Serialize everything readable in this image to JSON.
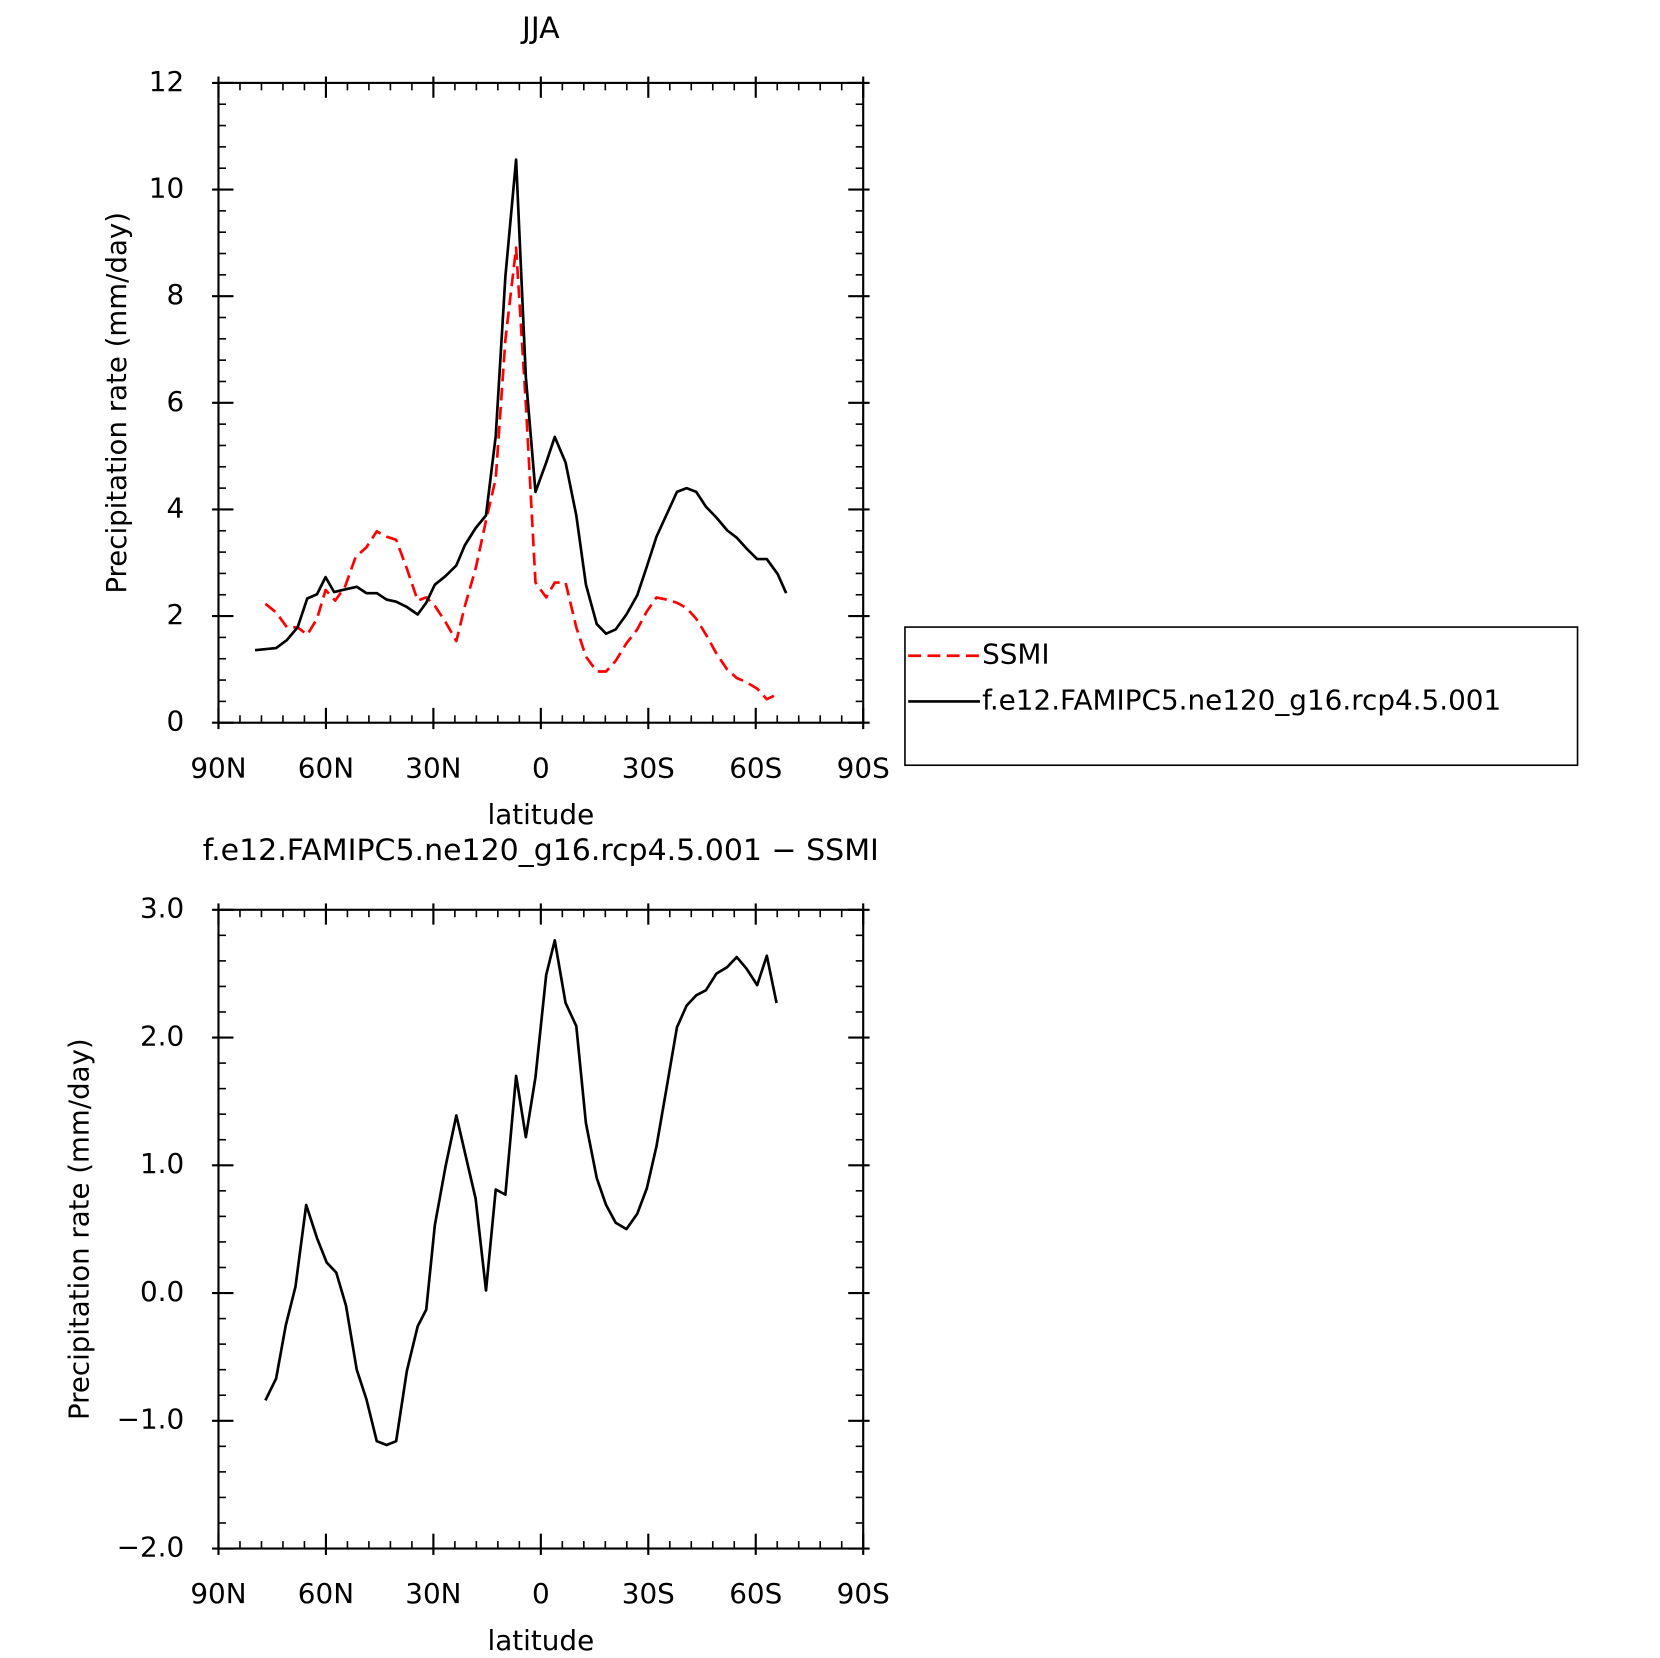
{
  "chart_data": [
    {
      "type": "line",
      "title": "JJA",
      "xlabel": "latitude",
      "ylabel": "Precipitation rate (mm/day)",
      "xlim": [
        90,
        -90
      ],
      "xticks": [
        {
          "value": 90,
          "label": "90N"
        },
        {
          "value": 60,
          "label": "60N"
        },
        {
          "value": 30,
          "label": "30N"
        },
        0,
        {
          "value": -30,
          "label": "30S"
        },
        {
          "value": -60,
          "label": "60S"
        },
        {
          "value": -90,
          "label": "90S"
        }
      ],
      "ylim": [
        0,
        12
      ],
      "yticks": [
        0,
        2,
        4,
        6,
        8,
        10,
        12
      ],
      "legend": "right",
      "series": [
        {
          "name": "SSMI",
          "color": "#ff0000",
          "linestyle": "dashed",
          "x": [
            76.9,
            73.9,
            70.9,
            67.9,
            65.2,
            62.5,
            60.1,
            57.4,
            54.7,
            51.7,
            48.7,
            45.8,
            43.1,
            40.4,
            37.4,
            34.4,
            32.0,
            29.6,
            26.6,
            23.6,
            21.2,
            18.2,
            15.3,
            12.6,
            9.9,
            6.9,
            4.2,
            1.5,
            -1.5,
            -3.9,
            -6.9,
            -9.9,
            -12.6,
            -15.6,
            -18.2,
            -20.9,
            -23.9,
            -26.9,
            -29.6,
            -32.3,
            -35.0,
            -38.0,
            -40.7,
            -43.4,
            -46.1,
            -49.0,
            -52.0,
            -54.7,
            -57.4,
            -60.4,
            -63.1,
            -66.1
          ],
          "values": [
            2.23,
            2.07,
            1.79,
            1.79,
            1.65,
            1.95,
            2.49,
            2.29,
            2.55,
            3.11,
            3.29,
            3.59,
            3.49,
            3.43,
            2.89,
            2.29,
            2.35,
            2.19,
            1.89,
            1.53,
            2.19,
            2.89,
            3.79,
            4.58,
            7.18,
            8.91,
            5.98,
            2.63,
            2.35,
            2.63,
            2.63,
            1.79,
            1.24,
            0.96,
            0.96,
            1.16,
            1.49,
            1.75,
            2.09,
            2.35,
            2.31,
            2.25,
            2.15,
            1.95,
            1.65,
            1.3,
            1.0,
            0.84,
            0.76,
            0.64,
            0.44,
            0.54
          ]
        },
        {
          "name": "f.e12.FAMIPC5.ne120_g16.rcp4.5.001",
          "color": "#000000",
          "linestyle": "solid",
          "x": [
            79.8,
            73.9,
            70.9,
            67.9,
            65.2,
            62.5,
            60.1,
            57.7,
            55.3,
            51.4,
            48.7,
            45.8,
            43.1,
            40.4,
            37.4,
            34.4,
            32.0,
            29.6,
            26.6,
            23.6,
            21.2,
            18.2,
            15.3,
            12.6,
            9.9,
            6.9,
            4.2,
            1.5,
            -1.5,
            -3.9,
            -6.9,
            -9.9,
            -12.6,
            -15.6,
            -18.2,
            -20.9,
            -23.9,
            -26.9,
            -29.6,
            -32.3,
            -35.0,
            -38.0,
            -40.7,
            -43.4,
            -46.1,
            -49.0,
            -52.0,
            -54.7,
            -57.4,
            -60.4,
            -63.1,
            -66.1,
            -68.5
          ],
          "values": [
            1.36,
            1.4,
            1.55,
            1.79,
            2.33,
            2.41,
            2.73,
            2.45,
            2.49,
            2.55,
            2.43,
            2.43,
            2.31,
            2.27,
            2.17,
            2.03,
            2.25,
            2.59,
            2.75,
            2.95,
            3.33,
            3.65,
            3.89,
            5.38,
            8.37,
            10.56,
            6.48,
            4.33,
            4.88,
            5.36,
            4.88,
            3.89,
            2.59,
            1.85,
            1.67,
            1.75,
            2.03,
            2.39,
            2.93,
            3.49,
            3.89,
            4.33,
            4.4,
            4.33,
            4.05,
            3.85,
            3.61,
            3.47,
            3.27,
            3.07,
            3.07,
            2.79,
            2.43
          ]
        }
      ]
    },
    {
      "type": "line",
      "title": "f.e12.FAMIPC5.ne120_g16.rcp4.5.001 − SSMI",
      "xlabel": "latitude",
      "ylabel": "Precipitation rate (mm/day)",
      "xlim": [
        90,
        -90
      ],
      "xticks": [
        {
          "value": 90,
          "label": "90N"
        },
        {
          "value": 60,
          "label": "60N"
        },
        {
          "value": 30,
          "label": "30N"
        },
        0,
        {
          "value": -30,
          "label": "30S"
        },
        {
          "value": -60,
          "label": "60S"
        },
        {
          "value": -90,
          "label": "90S"
        }
      ],
      "ylim": [
        -2,
        3
      ],
      "yticks": [
        {
          "value": -2,
          "label": "−2.0"
        },
        {
          "value": -1,
          "label": "−1.0"
        },
        {
          "value": 0,
          "label": "0.0"
        },
        {
          "value": 1,
          "label": "1.0"
        },
        {
          "value": 2,
          "label": "2.0"
        },
        {
          "value": 3,
          "label": "3.0"
        }
      ],
      "color": "#000000",
      "x": [
        76.9,
        73.9,
        71.2,
        68.5,
        65.5,
        62.5,
        59.8,
        57.1,
        54.4,
        51.4,
        48.7,
        45.8,
        43.1,
        40.4,
        37.4,
        34.4,
        32.0,
        29.6,
        26.6,
        23.6,
        21.2,
        18.2,
        15.3,
        12.6,
        9.9,
        6.9,
        4.2,
        1.5,
        -1.5,
        -3.9,
        -6.9,
        -9.9,
        -12.6,
        -15.6,
        -18.2,
        -20.9,
        -23.9,
        -26.9,
        -29.6,
        -32.3,
        -35.0,
        -38.0,
        -40.7,
        -43.4,
        -46.1,
        -49.0,
        -52.0,
        -54.7,
        -57.4,
        -60.4,
        -63.1,
        -65.8
      ],
      "values": [
        -0.84,
        -0.67,
        -0.25,
        0.05,
        0.69,
        0.43,
        0.24,
        0.16,
        -0.1,
        -0.6,
        -0.83,
        -1.16,
        -1.19,
        -1.16,
        -0.61,
        -0.26,
        -0.13,
        0.53,
        0.99,
        1.39,
        1.1,
        0.74,
        0.02,
        0.81,
        0.77,
        1.7,
        1.22,
        1.69,
        2.49,
        2.76,
        2.27,
        2.09,
        1.33,
        0.9,
        0.69,
        0.55,
        0.5,
        0.62,
        0.82,
        1.15,
        1.59,
        2.08,
        2.25,
        2.33,
        2.37,
        2.5,
        2.55,
        2.63,
        2.54,
        2.41,
        2.64,
        2.27
      ]
    }
  ]
}
